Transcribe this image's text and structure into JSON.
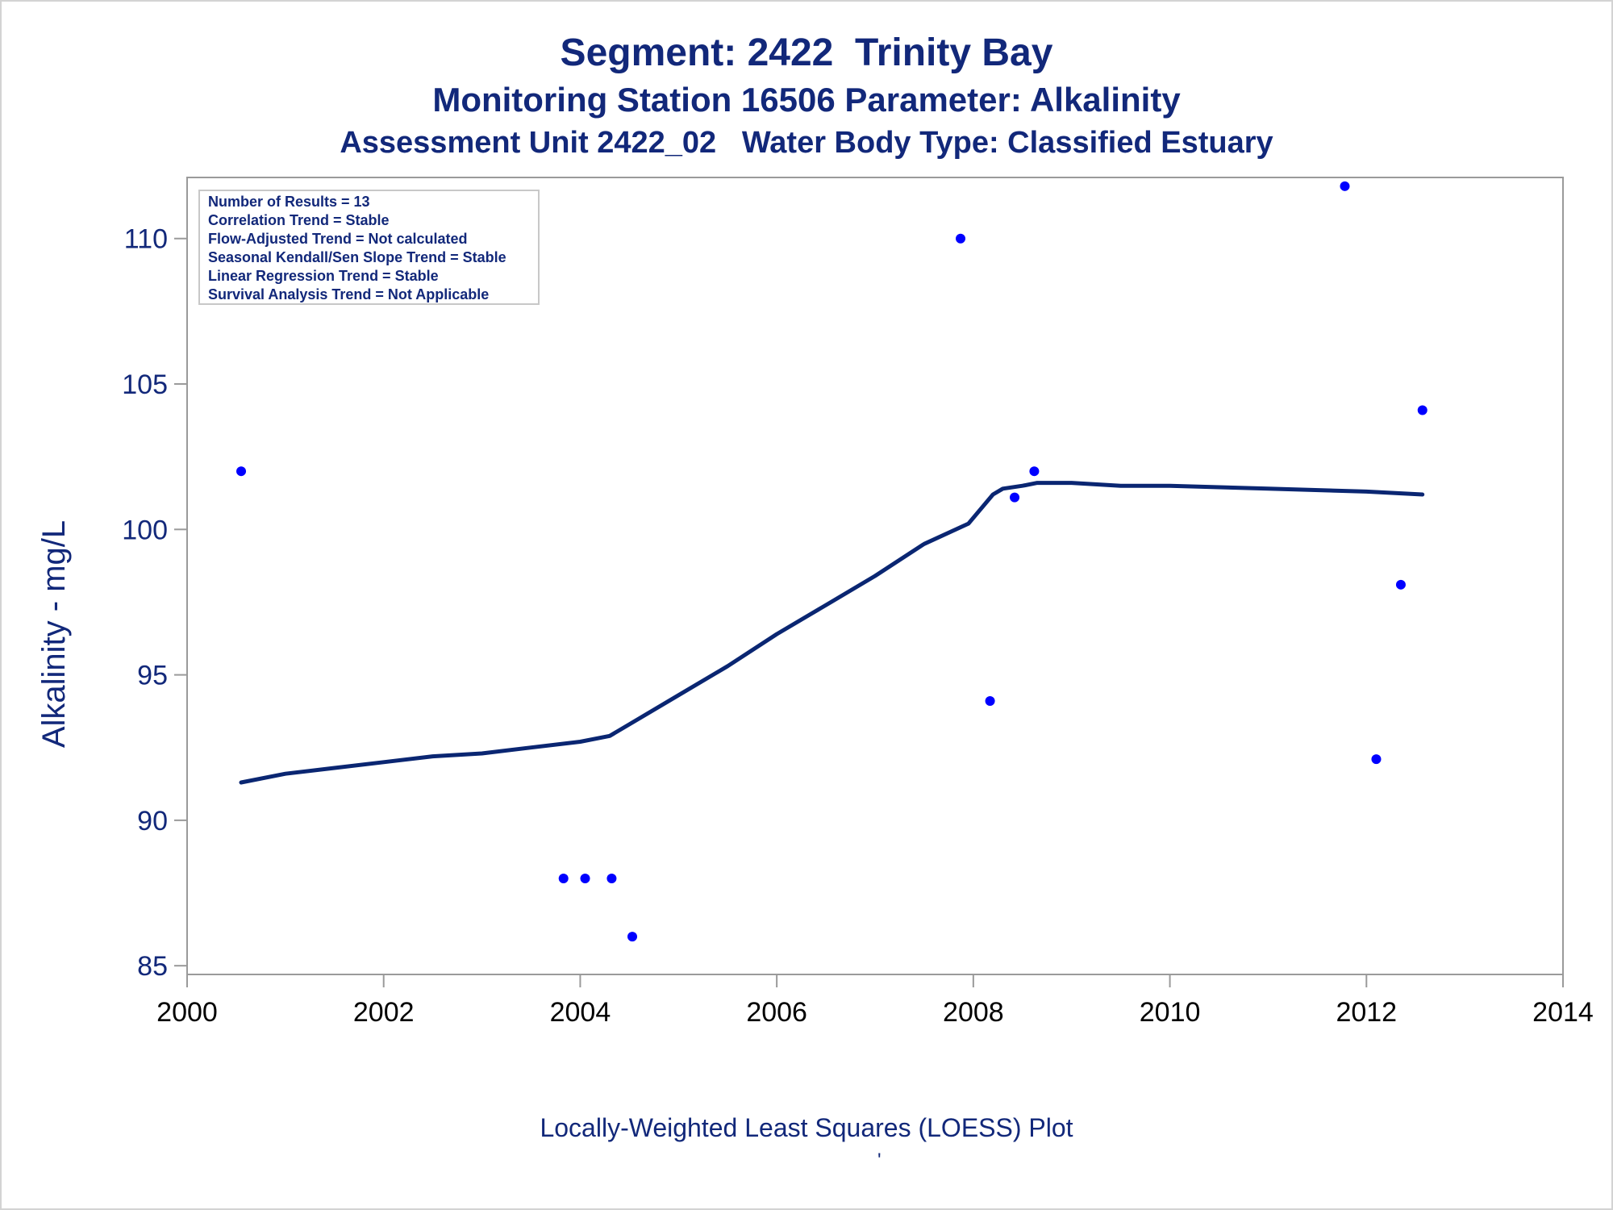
{
  "titles": {
    "line1": "Segment: 2422  Trinity Bay",
    "line2": "Monitoring Station 16506 Parameter: Alkalinity",
    "line3": "Assessment Unit 2422_02   Water Body Type: Classified Estuary"
  },
  "footnote": "Locally-Weighted Least Squares (LOESS) Plot",
  "footnote_mark": "'",
  "stats_box": [
    "Number of Results = 13",
    "Correlation Trend = Stable",
    "Flow-Adjusted Trend = Not calculated",
    "Seasonal Kendall/Sen Slope Trend = Stable",
    "Linear Regression Trend = Stable",
    "Survival Analysis Trend = Not Applicable"
  ],
  "colors": {
    "text": "#12287a",
    "points": "#0000ff",
    "loess_line": "#0a2672",
    "axis": "#9a9a9a"
  },
  "chart_data": {
    "type": "scatter",
    "title": "Segment: 2422  Trinity Bay",
    "xlabel": "",
    "ylabel": "Alkalinity - mg/L",
    "xlim": [
      2000,
      2014
    ],
    "ylim": [
      84.7,
      112.1
    ],
    "x_ticks": [
      2000,
      2002,
      2004,
      2006,
      2008,
      2010,
      2012,
      2014
    ],
    "y_ticks": [
      85,
      90,
      95,
      100,
      105,
      110
    ],
    "legend": "top-left stats box",
    "grid": false,
    "series": [
      {
        "kind": "points",
        "x": [
          2000.55,
          2003.83,
          2004.05,
          2004.32,
          2004.53,
          2007.87,
          2008.17,
          2008.42,
          2008.62,
          2011.78,
          2012.1,
          2012.35,
          2012.57
        ],
        "y": [
          102.0,
          88.0,
          88.0,
          88.0,
          86.0,
          110.0,
          94.1,
          101.1,
          102.0,
          111.8,
          92.1,
          98.1,
          104.1
        ]
      },
      {
        "kind": "loess",
        "x": [
          2000.55,
          2001.0,
          2001.5,
          2002.0,
          2002.5,
          2003.0,
          2003.5,
          2004.0,
          2004.3,
          2004.5,
          2005.0,
          2005.5,
          2006.0,
          2006.5,
          2007.0,
          2007.5,
          2007.95,
          2008.1,
          2008.2,
          2008.3,
          2008.5,
          2008.65,
          2009.0,
          2009.5,
          2010.0,
          2011.0,
          2012.0,
          2012.57
        ],
        "y": [
          91.3,
          91.6,
          91.8,
          92.0,
          92.2,
          92.3,
          92.5,
          92.7,
          92.9,
          93.3,
          94.3,
          95.3,
          96.4,
          97.4,
          98.4,
          99.5,
          100.2,
          100.8,
          101.2,
          101.4,
          101.5,
          101.6,
          101.6,
          101.5,
          101.5,
          101.4,
          101.3,
          101.2
        ]
      }
    ]
  }
}
